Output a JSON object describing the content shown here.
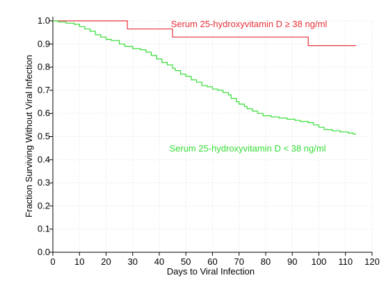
{
  "chart_data": {
    "type": "line",
    "title": "",
    "xlabel": "Days to Viral Infection",
    "ylabel": "Fraction Surviving Without Viral Infection",
    "xlim": [
      0,
      120
    ],
    "ylim": [
      0,
      1.0
    ],
    "x_ticks": [
      0,
      10,
      20,
      30,
      40,
      50,
      60,
      70,
      80,
      90,
      100,
      110,
      120
    ],
    "y_ticks": [
      "0.0",
      "0.1",
      "0.2",
      "0.3",
      "0.4",
      "0.5",
      "0.6",
      "0.7",
      "0.8",
      "0.9",
      "1.0"
    ],
    "grid": true,
    "series": [
      {
        "name": "Serum 25-hydroxyvitamin D ≥ 38 ng/ml",
        "color": "#e8313a",
        "step": true,
        "points": [
          [
            0,
            1.0
          ],
          [
            28,
            1.0
          ],
          [
            28,
            0.965
          ],
          [
            45,
            0.965
          ],
          [
            45,
            0.93
          ],
          [
            96,
            0.93
          ],
          [
            96,
            0.893
          ],
          [
            114,
            0.893
          ]
        ]
      },
      {
        "name": "Serum 25-hydroxyvitamin D < 38 ng/ml",
        "color": "#33dd33",
        "step": true,
        "points": [
          [
            0,
            1.0
          ],
          [
            2,
            0.995
          ],
          [
            5,
            0.99
          ],
          [
            8,
            0.985
          ],
          [
            10,
            0.975
          ],
          [
            12,
            0.965
          ],
          [
            14,
            0.955
          ],
          [
            16,
            0.94
          ],
          [
            18,
            0.93
          ],
          [
            20,
            0.92
          ],
          [
            22,
            0.915
          ],
          [
            25,
            0.9
          ],
          [
            27,
            0.89
          ],
          [
            30,
            0.88
          ],
          [
            33,
            0.875
          ],
          [
            35,
            0.865
          ],
          [
            37,
            0.85
          ],
          [
            39,
            0.835
          ],
          [
            41,
            0.82
          ],
          [
            43,
            0.81
          ],
          [
            45,
            0.795
          ],
          [
            46,
            0.785
          ],
          [
            48,
            0.77
          ],
          [
            50,
            0.76
          ],
          [
            52,
            0.745
          ],
          [
            54,
            0.735
          ],
          [
            56,
            0.72
          ],
          [
            58,
            0.715
          ],
          [
            60,
            0.705
          ],
          [
            62,
            0.7
          ],
          [
            64,
            0.69
          ],
          [
            66,
            0.68
          ],
          [
            67,
            0.665
          ],
          [
            69,
            0.65
          ],
          [
            70,
            0.64
          ],
          [
            72,
            0.63
          ],
          [
            73,
            0.62
          ],
          [
            75,
            0.61
          ],
          [
            77,
            0.6
          ],
          [
            79,
            0.59
          ],
          [
            82,
            0.585
          ],
          [
            85,
            0.58
          ],
          [
            88,
            0.575
          ],
          [
            91,
            0.57
          ],
          [
            93,
            0.565
          ],
          [
            96,
            0.56
          ],
          [
            98,
            0.55
          ],
          [
            100,
            0.54
          ],
          [
            102,
            0.53
          ],
          [
            105,
            0.525
          ],
          [
            108,
            0.52
          ],
          [
            111,
            0.515
          ],
          [
            113,
            0.51
          ],
          [
            114,
            0.51
          ]
        ]
      }
    ],
    "annotations": [
      {
        "text": "Serum 25-hydroxyvitamin D ≥ 38 ng/ml",
        "series": 0
      },
      {
        "text": "Serum 25-hydroxyvitamin D < 38 ng/ml",
        "series": 1
      }
    ]
  }
}
